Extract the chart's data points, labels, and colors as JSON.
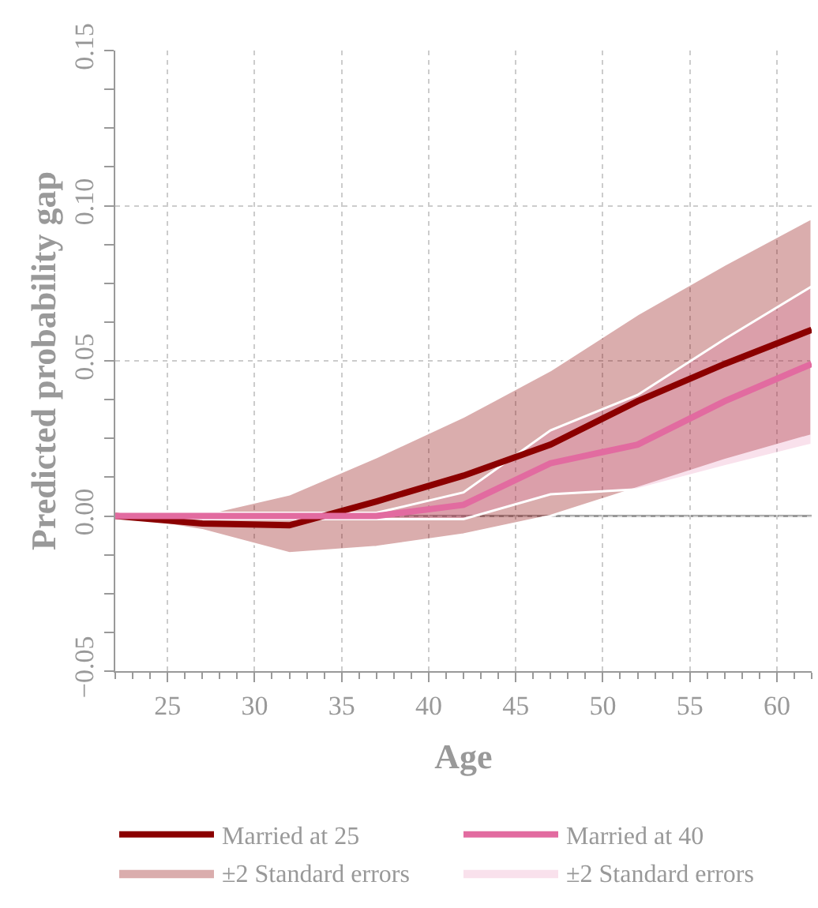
{
  "chart_data": {
    "type": "line",
    "xlabel": "Age",
    "ylabel": "Predicted probability gap",
    "x": [
      22,
      27,
      32,
      37,
      42,
      47,
      52,
      57,
      62
    ],
    "series": [
      {
        "name": "Married at 25",
        "color": "#8b0000",
        "values": [
          0,
          -0.0024,
          -0.003,
          0.0047,
          0.013,
          0.023,
          0.037,
          0.049,
          0.06
        ],
        "lower": [
          0,
          -0.0046,
          -0.012,
          -0.01,
          -0.006,
          0.0,
          0.009,
          0.018,
          0.026
        ],
        "upper": [
          0,
          0.0005,
          0.007,
          0.019,
          0.032,
          0.047,
          0.065,
          0.081,
          0.096
        ]
      },
      {
        "name": "Married at 40",
        "color": "#e26ba0",
        "values": [
          0,
          0,
          0,
          0,
          0.0036,
          0.017,
          0.023,
          0.037,
          0.049
        ],
        "lower": [
          0,
          -0.001,
          -0.001,
          -0.001,
          -0.001,
          0.007,
          0.0086,
          0.016,
          0.023
        ],
        "upper": [
          0,
          0.001,
          0.001,
          0.001,
          0.0076,
          0.0276,
          0.039,
          0.057,
          0.074
        ]
      }
    ],
    "annotations": [
      "±2 Standard errors",
      "±2 Standard errors"
    ],
    "xlim": [
      22,
      62
    ],
    "xticks": [
      25,
      30,
      35,
      40,
      45,
      50,
      55,
      60
    ],
    "ylim": [
      -0.05,
      0.15
    ],
    "yticks": [
      {
        "value": -0.05,
        "label": "−0.05"
      },
      {
        "value": 0,
        "label": "0.00"
      },
      {
        "value": 0.05,
        "label": "0.05"
      },
      {
        "value": 0.1,
        "label": "0.10"
      },
      {
        "value": 0.15,
        "label": "0.15"
      }
    ],
    "ref_lines": [
      {
        "axis": "y",
        "value": 0,
        "color": "#999999"
      }
    ],
    "grid": true,
    "legend": "bottom",
    "marker": "none",
    "line_style": "solid"
  }
}
